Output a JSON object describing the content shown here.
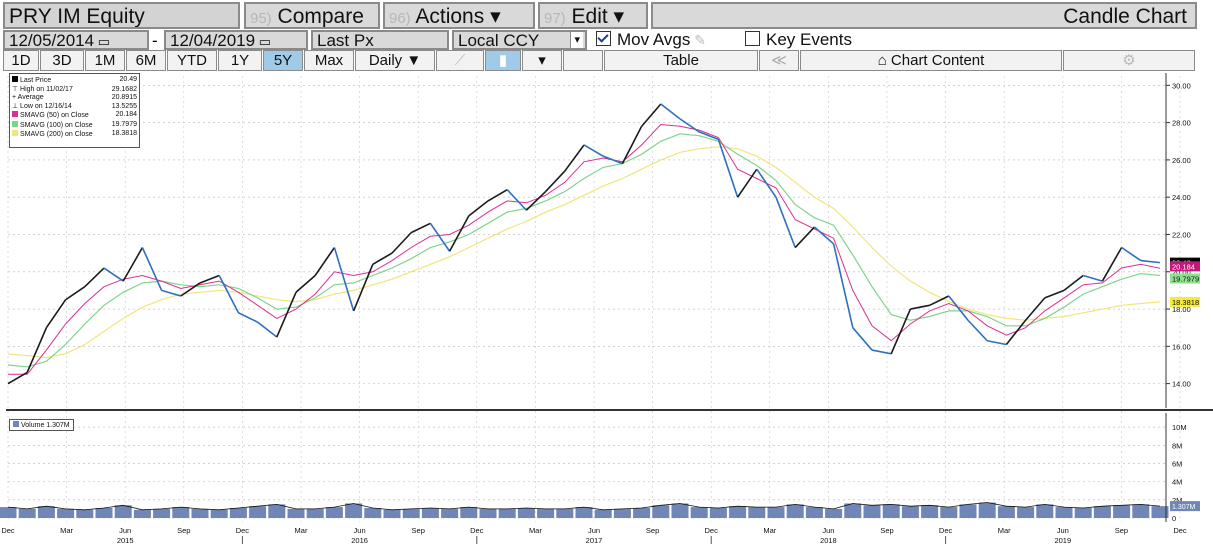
{
  "toolbar": {
    "ticker": "PRY IM Equity",
    "compare_num": "95)",
    "compare": "Compare",
    "actions_num": "96)",
    "actions": "Actions ▾",
    "edit_num": "97)",
    "edit": "Edit ▾",
    "chart_type": "Candle Chart"
  },
  "params": {
    "start_date": "12/05/2014",
    "dash": "-",
    "end_date": "12/04/2019",
    "field": "Last Px",
    "currency": "Local CCY",
    "mov_avgs": "Mov Avgs",
    "key_events": "Key Events"
  },
  "periods": {
    "d1": "1D",
    "d3": "3D",
    "m1": "1M",
    "m6": "6M",
    "ytd": "YTD",
    "y1": "1Y",
    "y5": "5Y",
    "max": "Max",
    "freq": "Daily ▼",
    "table": "Table",
    "chart_content": "Chart Content",
    "rewind": "≪"
  },
  "legend": {
    "last_label": "Last Price",
    "last_val": "20.49",
    "high_label": "High on 11/02/17",
    "high_val": "29.1682",
    "avg_label": "Average",
    "avg_val": "20.8915",
    "low_label": "Low on 12/16/14",
    "low_val": "13.5255",
    "sma50_label": "SMAVG (50)  on Close",
    "sma50_val": "20.184",
    "sma100_label": "SMAVG (100)  on Close",
    "sma100_val": "19.7979",
    "sma200_label": "SMAVG (200)  on Close",
    "sma200_val": "18.3818"
  },
  "volume_legend": "Volume 1.307M",
  "colors": {
    "price": "#1b1b1b",
    "price_down": "#2f6fc0",
    "sma50": "#d8318f",
    "sma100": "#7fd48a",
    "sma200": "#f0e67a",
    "volume": "#6f86b6",
    "badge_last": "#000000",
    "badge_sma50": "#c2187a",
    "badge_sma100": "#8ee08e",
    "badge_sma200": "#f7ea3c"
  },
  "chart_data": {
    "type": "line",
    "title": "PRY IM Equity",
    "date_range": [
      "12/05/2014",
      "12/04/2019"
    ],
    "frequency": "Daily",
    "x_ticks": [
      "Dec",
      "Mar",
      "Jun",
      "Sep",
      "Dec",
      "Mar",
      "Jun",
      "Sep",
      "Dec",
      "Mar",
      "Jun",
      "Sep",
      "Dec",
      "Mar",
      "Jun",
      "Sep",
      "Dec",
      "Mar",
      "Jun",
      "Sep",
      "Dec"
    ],
    "year_labels": [
      "2015",
      "2016",
      "2017",
      "2018",
      "2019"
    ],
    "ylim": [
      12.8,
      30.5
    ],
    "y_ticks": [
      "30.00",
      "28.00",
      "26.00",
      "24.00",
      "22.00",
      "20.00",
      "18.00",
      "16.00",
      "14.00"
    ],
    "volume_ylim": [
      0,
      11
    ],
    "volume_ticks": [
      "10M",
      "8M",
      "6M",
      "4M",
      "2M",
      "0"
    ],
    "grid": true,
    "x": [
      "12/2014",
      "01/2015",
      "02/2015",
      "03/2015",
      "04/2015",
      "05/2015",
      "06/2015",
      "07/2015",
      "08/2015",
      "09/2015",
      "10/2015",
      "11/2015",
      "12/2015",
      "01/2016",
      "02/2016",
      "03/2016",
      "04/2016",
      "05/2016",
      "06/2016",
      "07/2016",
      "08/2016",
      "09/2016",
      "10/2016",
      "11/2016",
      "12/2016",
      "01/2017",
      "02/2017",
      "03/2017",
      "04/2017",
      "05/2017",
      "06/2017",
      "07/2017",
      "08/2017",
      "09/2017",
      "10/2017",
      "11/2017",
      "12/2017",
      "01/2018",
      "02/2018",
      "03/2018",
      "04/2018",
      "05/2018",
      "06/2018",
      "07/2018",
      "08/2018",
      "09/2018",
      "10/2018",
      "11/2018",
      "12/2018",
      "01/2019",
      "02/2019",
      "03/2019",
      "04/2019",
      "05/2019",
      "06/2019",
      "07/2019",
      "08/2019",
      "09/2019",
      "10/2019",
      "11/2019",
      "12/2019"
    ],
    "series": [
      {
        "name": "Last Price",
        "values": [
          14.0,
          14.6,
          17.0,
          18.5,
          19.2,
          20.2,
          19.5,
          21.3,
          19.0,
          18.7,
          19.4,
          19.8,
          17.8,
          17.3,
          16.5,
          18.9,
          19.8,
          21.3,
          17.9,
          20.4,
          21.0,
          22.1,
          22.6,
          21.1,
          23.0,
          23.8,
          24.4,
          23.3,
          24.3,
          25.4,
          26.8,
          26.2,
          25.8,
          27.8,
          29.0,
          28.2,
          27.5,
          27.1,
          24.0,
          25.5,
          24.0,
          21.3,
          22.4,
          21.5,
          17.0,
          15.8,
          15.6,
          18.0,
          18.2,
          18.7,
          17.4,
          16.3,
          16.1,
          17.4,
          18.6,
          19.0,
          19.8,
          19.5,
          21.3,
          20.6,
          20.49
        ]
      },
      {
        "name": "SMAVG (50)  on Close",
        "values": [
          14.5,
          14.5,
          15.8,
          17.2,
          18.3,
          19.2,
          19.6,
          19.8,
          19.5,
          19.1,
          19.3,
          19.5,
          18.9,
          18.2,
          17.5,
          18.0,
          18.8,
          20.0,
          19.8,
          20.0,
          20.6,
          21.3,
          21.9,
          22.0,
          22.5,
          23.2,
          23.8,
          23.7,
          24.1,
          24.8,
          25.9,
          26.1,
          25.9,
          26.8,
          27.9,
          27.8,
          27.6,
          27.2,
          25.5,
          25.0,
          24.5,
          22.8,
          22.3,
          21.8,
          19.0,
          17.1,
          16.3,
          17.2,
          17.9,
          18.3,
          17.9,
          17.1,
          16.6,
          17.0,
          17.9,
          18.6,
          19.3,
          19.4,
          20.2,
          20.4,
          20.184
        ]
      },
      {
        "name": "SMAVG (100)  on Close",
        "values": [
          15.0,
          14.9,
          15.2,
          16.1,
          17.2,
          18.2,
          18.9,
          19.4,
          19.5,
          19.3,
          19.2,
          19.3,
          19.1,
          18.6,
          18.0,
          18.1,
          18.6,
          19.3,
          19.4,
          19.8,
          20.2,
          20.7,
          21.3,
          21.6,
          22.0,
          22.6,
          23.2,
          23.4,
          23.8,
          24.3,
          25.0,
          25.6,
          25.8,
          26.3,
          27.0,
          27.4,
          27.3,
          27.0,
          26.3,
          25.7,
          24.9,
          23.6,
          22.9,
          22.5,
          20.9,
          19.2,
          17.7,
          17.4,
          17.6,
          17.9,
          17.9,
          17.6,
          17.1,
          17.1,
          17.5,
          18.1,
          18.8,
          19.2,
          19.6,
          19.9,
          19.7979
        ]
      },
      {
        "name": "SMAVG (200)  on Close",
        "values": [
          15.6,
          15.5,
          15.4,
          15.6,
          16.1,
          16.8,
          17.5,
          18.1,
          18.5,
          18.8,
          18.9,
          19.0,
          18.9,
          18.7,
          18.5,
          18.4,
          18.5,
          18.8,
          19.0,
          19.3,
          19.6,
          20.0,
          20.4,
          20.8,
          21.3,
          21.8,
          22.3,
          22.7,
          23.2,
          23.6,
          24.1,
          24.6,
          25.0,
          25.5,
          26.0,
          26.4,
          26.6,
          26.7,
          26.6,
          26.2,
          25.6,
          24.8,
          24.0,
          23.4,
          22.4,
          21.3,
          20.3,
          19.5,
          18.9,
          18.4,
          18.0,
          17.7,
          17.5,
          17.4,
          17.5,
          17.6,
          17.8,
          18.0,
          18.2,
          18.3,
          18.3818
        ]
      },
      {
        "name": "Volume",
        "values": [
          1.2,
          1.0,
          1.3,
          1.0,
          0.9,
          1.1,
          1.4,
          0.9,
          1.0,
          1.2,
          1.0,
          0.9,
          1.1,
          1.3,
          1.5,
          1.0,
          1.0,
          1.2,
          1.6,
          1.1,
          0.9,
          1.0,
          1.1,
          1.0,
          1.2,
          1.0,
          1.0,
          1.1,
          1.0,
          1.0,
          1.2,
          0.9,
          1.0,
          1.1,
          1.4,
          1.6,
          1.2,
          1.1,
          1.3,
          1.2,
          1.2,
          1.5,
          1.2,
          1.0,
          1.6,
          1.4,
          1.5,
          1.3,
          1.4,
          1.2,
          1.5,
          1.7,
          1.3,
          1.2,
          1.5,
          1.2,
          1.1,
          1.3,
          1.4,
          1.5,
          1.307
        ]
      }
    ],
    "last_badges": [
      "20.49",
      "20.184",
      "19.7979",
      "18.3818"
    ]
  }
}
